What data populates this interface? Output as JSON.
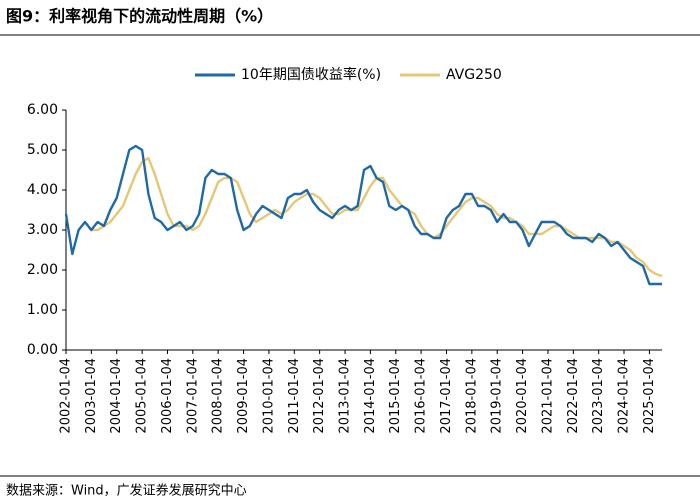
{
  "chart_data": {
    "type": "line",
    "title": "图9：利率视角下的流动性周期（%）",
    "source": "数据来源：Wind，广发证券发展研究中心",
    "x": [
      "2002-01-04",
      "2002-04-04",
      "2002-07-04",
      "2002-10-04",
      "2003-01-04",
      "2003-04-04",
      "2003-07-04",
      "2003-10-04",
      "2004-01-04",
      "2004-04-04",
      "2004-07-04",
      "2004-10-04",
      "2005-01-04",
      "2005-04-04",
      "2005-07-04",
      "2005-10-04",
      "2006-01-04",
      "2006-04-04",
      "2006-07-04",
      "2006-10-04",
      "2007-01-04",
      "2007-04-04",
      "2007-07-04",
      "2007-10-04",
      "2008-01-04",
      "2008-04-04",
      "2008-07-04",
      "2008-10-04",
      "2009-01-04",
      "2009-04-04",
      "2009-07-04",
      "2009-10-04",
      "2010-01-04",
      "2010-04-04",
      "2010-07-04",
      "2010-10-04",
      "2011-01-04",
      "2011-04-04",
      "2011-07-04",
      "2011-10-04",
      "2012-01-04",
      "2012-04-04",
      "2012-07-04",
      "2012-10-04",
      "2013-01-04",
      "2013-04-04",
      "2013-07-04",
      "2013-10-04",
      "2014-01-04",
      "2014-04-04",
      "2014-07-04",
      "2014-10-04",
      "2015-01-04",
      "2015-04-04",
      "2015-07-04",
      "2015-10-04",
      "2016-01-04",
      "2016-04-04",
      "2016-07-04",
      "2016-10-04",
      "2017-01-04",
      "2017-04-04",
      "2017-07-04",
      "2017-10-04",
      "2018-01-04",
      "2018-04-04",
      "2018-07-04",
      "2018-10-04",
      "2019-01-04",
      "2019-04-04",
      "2019-07-04",
      "2019-10-04",
      "2020-01-04",
      "2020-04-04",
      "2020-07-04",
      "2020-10-04",
      "2021-01-04",
      "2021-04-04",
      "2021-07-04",
      "2021-10-04",
      "2022-01-04",
      "2022-04-04",
      "2022-07-04",
      "2022-10-04",
      "2023-01-04",
      "2023-04-04",
      "2023-07-04",
      "2023-10-04",
      "2024-01-04",
      "2024-04-04",
      "2024-07-04",
      "2024-10-04",
      "2025-01-04",
      "2025-04-04",
      "2025-07-04"
    ],
    "series": [
      {
        "name": "10年期国债收益率(%)",
        "color": "#1f69a6",
        "values": [
          3.4,
          2.4,
          3.0,
          3.2,
          3.0,
          3.2,
          3.1,
          3.5,
          3.8,
          4.4,
          5.0,
          5.1,
          5.0,
          3.9,
          3.3,
          3.2,
          3.0,
          3.1,
          3.2,
          3.0,
          3.1,
          3.4,
          4.3,
          4.5,
          4.4,
          4.4,
          4.3,
          3.5,
          3.0,
          3.1,
          3.4,
          3.6,
          3.5,
          3.4,
          3.3,
          3.8,
          3.9,
          3.9,
          4.0,
          3.7,
          3.5,
          3.4,
          3.3,
          3.5,
          3.6,
          3.5,
          3.6,
          4.5,
          4.6,
          4.3,
          4.2,
          3.6,
          3.5,
          3.6,
          3.5,
          3.1,
          2.9,
          2.9,
          2.8,
          2.8,
          3.3,
          3.5,
          3.6,
          3.9,
          3.9,
          3.6,
          3.6,
          3.5,
          3.2,
          3.4,
          3.2,
          3.2,
          3.0,
          2.6,
          2.9,
          3.2,
          3.2,
          3.2,
          3.1,
          2.9,
          2.8,
          2.8,
          2.8,
          2.7,
          2.9,
          2.8,
          2.6,
          2.7,
          2.5,
          2.3,
          2.2,
          2.1,
          1.65,
          1.65,
          1.65
        ]
      },
      {
        "name": "AVG250",
        "color": "#e6c874",
        "values": [
          null,
          null,
          null,
          null,
          3.0,
          3.0,
          3.1,
          3.2,
          3.4,
          3.6,
          4.0,
          4.4,
          4.7,
          4.8,
          4.4,
          3.9,
          3.4,
          3.1,
          3.1,
          3.1,
          3.0,
          3.1,
          3.4,
          3.8,
          4.2,
          4.3,
          4.3,
          4.2,
          3.8,
          3.4,
          3.2,
          3.3,
          3.4,
          3.5,
          3.4,
          3.5,
          3.7,
          3.8,
          3.9,
          3.9,
          3.8,
          3.6,
          3.4,
          3.4,
          3.5,
          3.5,
          3.5,
          3.8,
          4.1,
          4.3,
          4.3,
          4.0,
          3.8,
          3.6,
          3.5,
          3.4,
          3.1,
          2.9,
          2.8,
          2.9,
          3.1,
          3.3,
          3.5,
          3.7,
          3.8,
          3.8,
          3.7,
          3.6,
          3.4,
          3.3,
          3.3,
          3.2,
          3.1,
          2.9,
          2.9,
          2.9,
          3.0,
          3.1,
          3.1,
          3.0,
          2.9,
          2.8,
          2.8,
          2.8,
          2.8,
          2.8,
          2.7,
          2.7,
          2.6,
          2.5,
          2.3,
          2.2,
          2.0,
          1.9,
          1.85
        ]
      }
    ],
    "xlim": [
      "2002-01-04",
      "2025-07-04"
    ],
    "xticks": [
      "2002-01-04",
      "2003-01-04",
      "2004-01-04",
      "2005-01-04",
      "2006-01-04",
      "2007-01-04",
      "2008-01-04",
      "2009-01-04",
      "2010-01-04",
      "2011-01-04",
      "2012-01-04",
      "2013-01-04",
      "2014-01-04",
      "2015-01-04",
      "2016-01-04",
      "2017-01-04",
      "2018-01-04",
      "2019-01-04",
      "2020-01-04",
      "2021-01-04",
      "2022-01-04",
      "2023-01-04",
      "2024-01-04",
      "2025-01-04"
    ],
    "ylim": [
      0,
      6
    ],
    "yticks": [
      {
        "value": 0,
        "label": "0.00"
      },
      {
        "value": 1,
        "label": "1.00"
      },
      {
        "value": 2,
        "label": "2.00"
      },
      {
        "value": 3,
        "label": "3.00"
      },
      {
        "value": 4,
        "label": "4.00"
      },
      {
        "value": 5,
        "label": "5.00"
      },
      {
        "value": 6,
        "label": "6.00"
      }
    ]
  }
}
